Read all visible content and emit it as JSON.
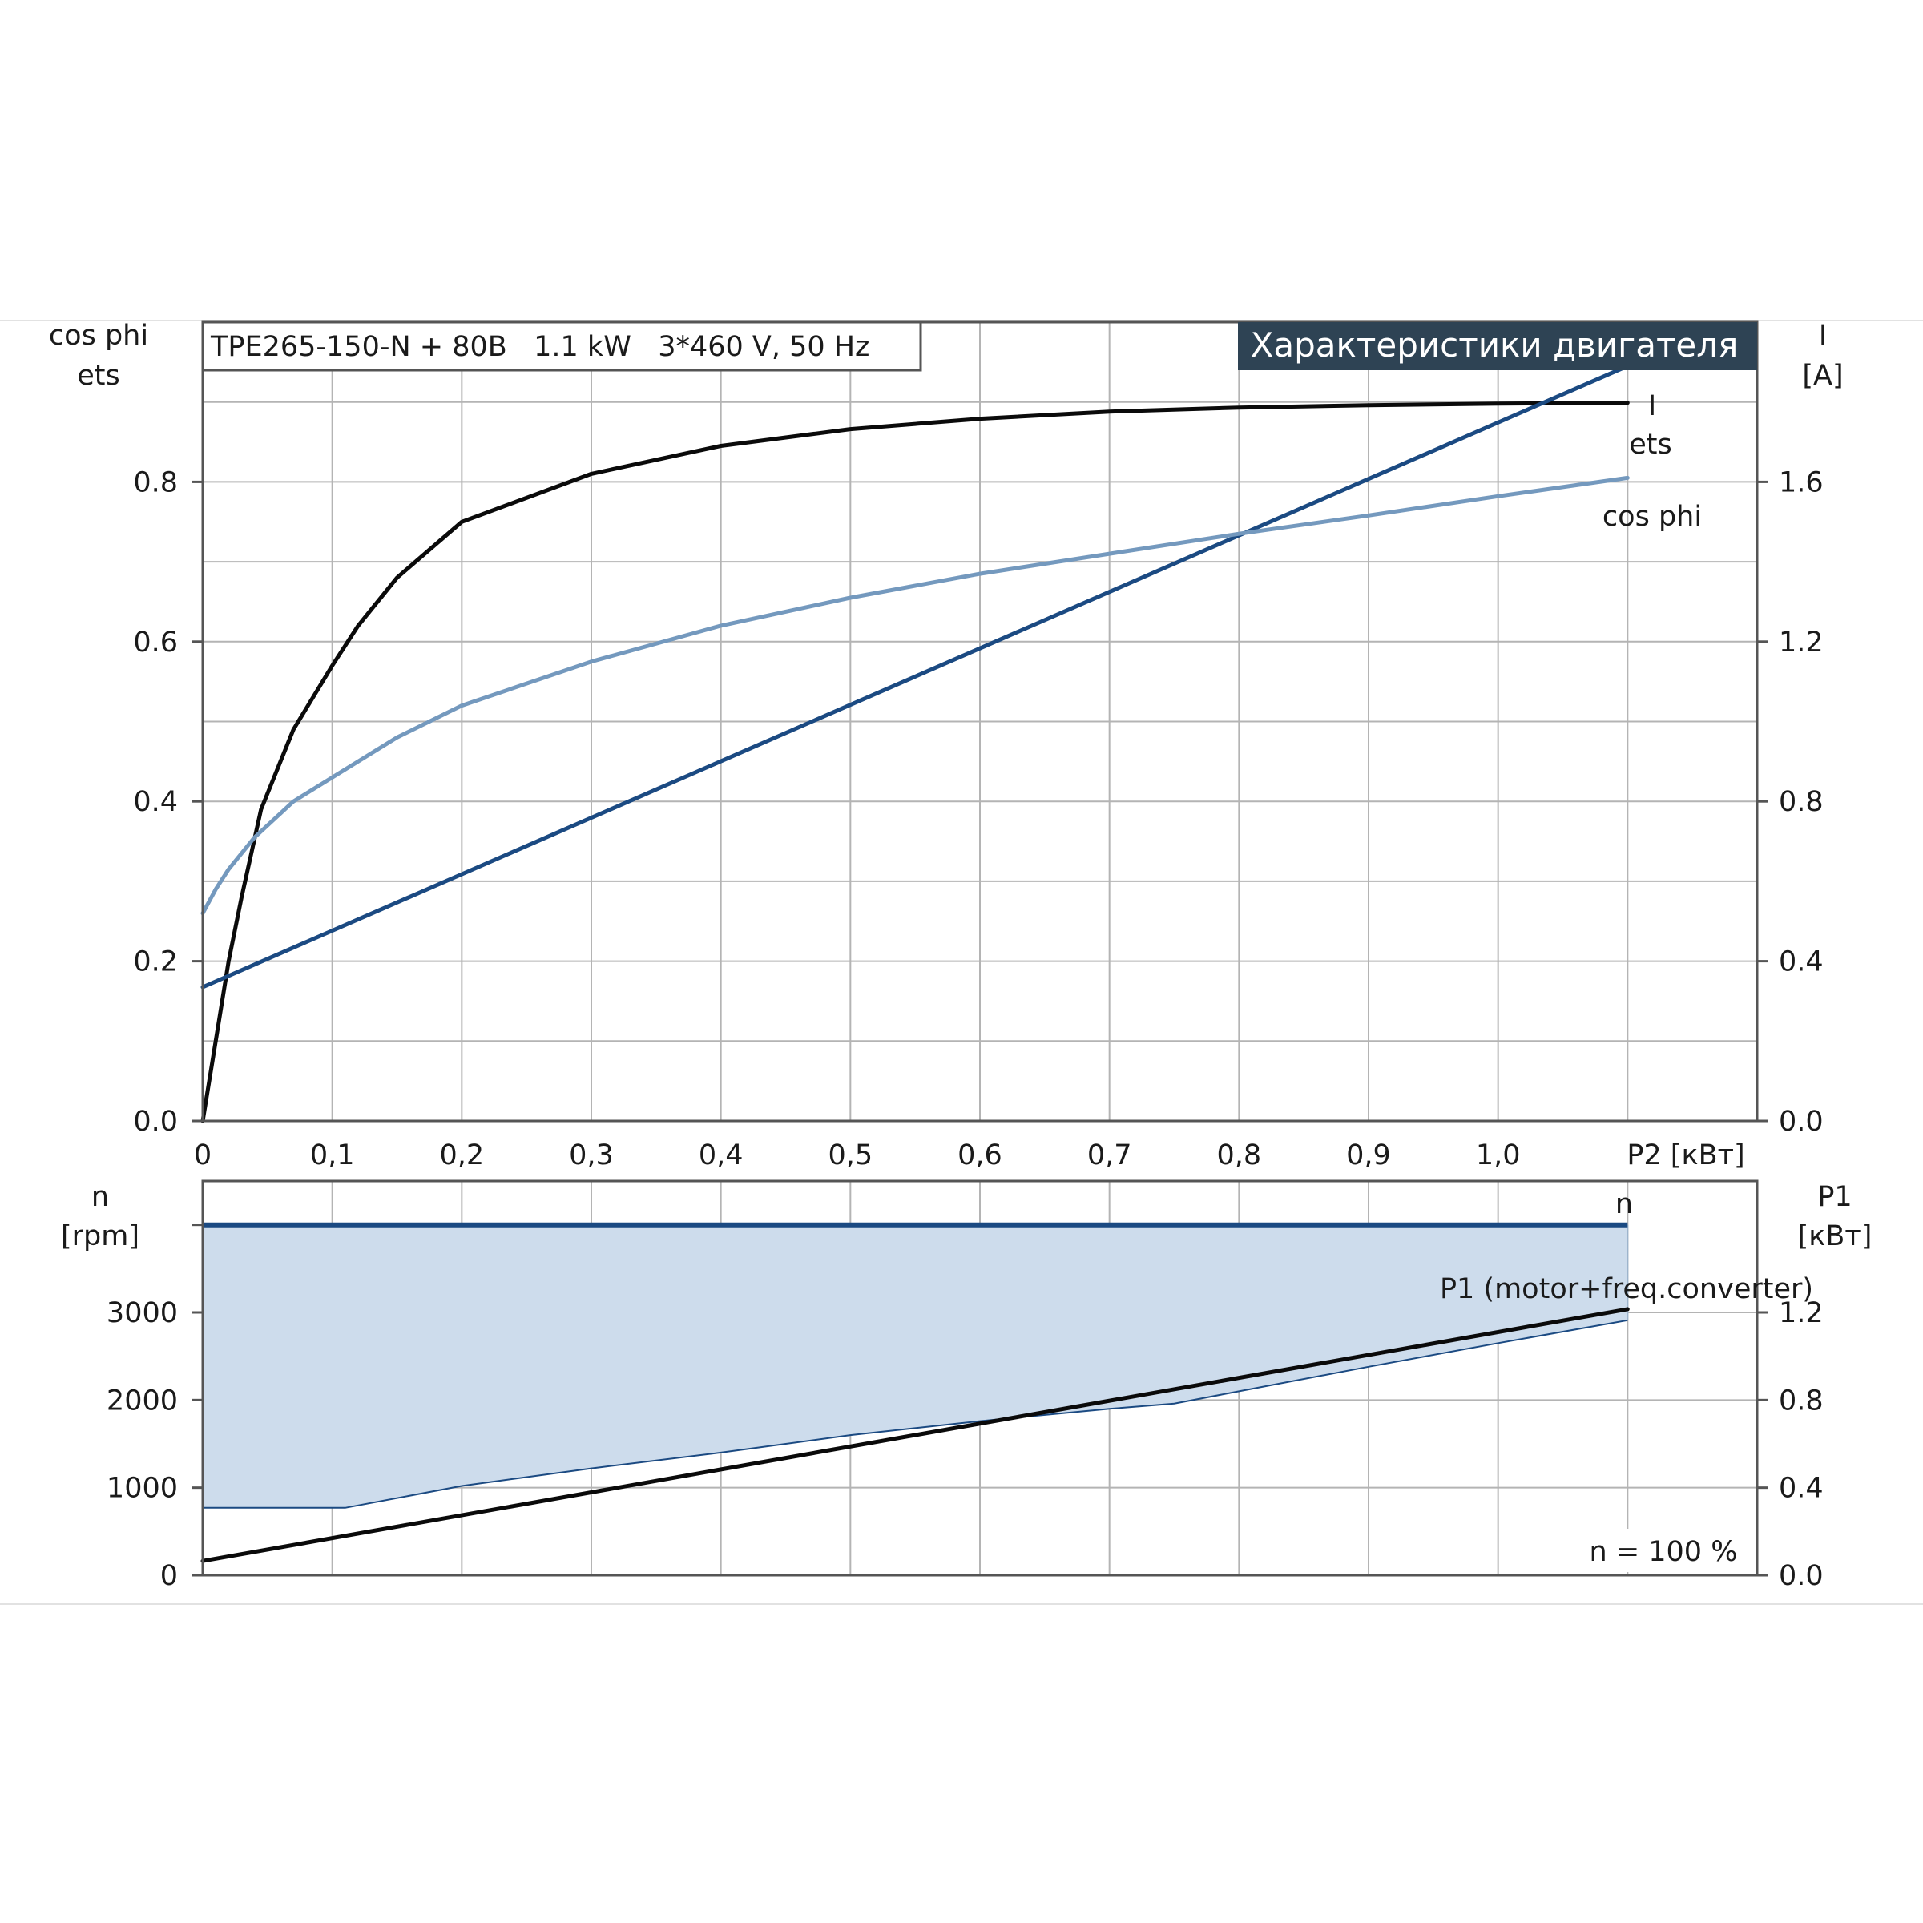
{
  "header": {
    "model_label": "TPE265-150-N + 80B   1.1 kW   3*460 V, 50 Hz",
    "title": "Характеристики двигателя"
  },
  "colors": {
    "ets": "#0a0a0a",
    "current": "#1b4a82",
    "cosphi": "#7499be",
    "speed_fill": "#cddcec",
    "title_bg": "#2e4354"
  },
  "chart_data": [
    {
      "type": "line",
      "x_axis": {
        "label": "P2 [кВт]",
        "range": [
          0,
          1.2
        ],
        "tick_labels": [
          "0",
          "0,1",
          "0,2",
          "0,3",
          "0,4",
          "0,5",
          "0,6",
          "0,7",
          "0,8",
          "0,9",
          "1,0"
        ]
      },
      "y_left": {
        "labels": [
          "cos phi",
          "ets"
        ],
        "range": [
          0,
          1.0
        ],
        "tick_values": [
          0.0,
          0.2,
          0.4,
          0.6,
          0.8
        ],
        "tick_labels": [
          "0.0",
          "0.2",
          "0.4",
          "0.6",
          "0.8"
        ]
      },
      "y_right": {
        "labels": [
          "I",
          "[A]"
        ],
        "range": [
          0,
          2.0
        ],
        "tick_values": [
          0.0,
          0.4,
          0.8,
          1.2,
          1.6
        ],
        "tick_labels": [
          "0.0",
          "0.4",
          "0.8",
          "1.2",
          "1.6"
        ]
      },
      "grid": true,
      "series": [
        {
          "name": "ets",
          "axis": "left",
          "x": [
            0,
            0.01,
            0.02,
            0.03,
            0.045,
            0.07,
            0.1,
            0.12,
            0.15,
            0.2,
            0.3,
            0.4,
            0.5,
            0.6,
            0.7,
            0.8,
            0.9,
            1.0,
            1.1
          ],
          "y": [
            0,
            0.1,
            0.2,
            0.28,
            0.39,
            0.49,
            0.57,
            0.62,
            0.68,
            0.75,
            0.81,
            0.845,
            0.866,
            0.879,
            0.888,
            0.893,
            0.896,
            0.898,
            0.899
          ]
        },
        {
          "name": "I",
          "axis": "right",
          "x": [
            0,
            1.1
          ],
          "y": [
            0.335,
            1.89
          ]
        },
        {
          "name": "cos phi",
          "axis": "left",
          "x": [
            0,
            0.01,
            0.02,
            0.04,
            0.07,
            0.1,
            0.15,
            0.2,
            0.3,
            0.4,
            0.5,
            0.6,
            0.7,
            0.8,
            0.9,
            1.0,
            1.1
          ],
          "y": [
            0.26,
            0.29,
            0.315,
            0.355,
            0.4,
            0.43,
            0.48,
            0.52,
            0.575,
            0.62,
            0.655,
            0.685,
            0.71,
            0.735,
            0.758,
            0.782,
            0.805
          ]
        }
      ]
    },
    {
      "type": "area",
      "x_axis": {
        "range": [
          0,
          1.2
        ]
      },
      "y_left": {
        "labels": [
          "n",
          "[rpm]"
        ],
        "range": [
          0,
          4500
        ],
        "tick_values": [
          0,
          1000,
          2000,
          3000
        ],
        "tick_labels": [
          "0",
          "1000",
          "2000",
          "3000"
        ]
      },
      "y_right": {
        "labels": [
          "P1",
          "[кВт]"
        ],
        "range": [
          0,
          1.8
        ],
        "tick_values": [
          0.0,
          0.4,
          0.8,
          1.2
        ],
        "tick_labels": [
          "0.0",
          "0.4",
          "0.8",
          "1.2"
        ]
      },
      "annotation": "n = 100 %",
      "series": [
        {
          "name": "n",
          "axis": "left",
          "x": [
            0,
            1.1
          ],
          "y": [
            4000,
            4000
          ]
        },
        {
          "name": "P1 (motor+freq.converter)",
          "axis": "right",
          "x": [
            0,
            1.1
          ],
          "y": [
            0.065,
            1.215
          ]
        },
        {
          "axis": "left",
          "x": [
            0,
            0.11,
            0.2,
            0.3,
            0.4,
            0.5,
            0.6,
            0.7,
            0.75,
            0.8,
            0.9,
            1.0,
            1.1
          ],
          "y": [
            770,
            770,
            1020,
            1220,
            1400,
            1600,
            1760,
            1900,
            1960,
            2100,
            2380,
            2650,
            2910
          ]
        }
      ]
    }
  ]
}
